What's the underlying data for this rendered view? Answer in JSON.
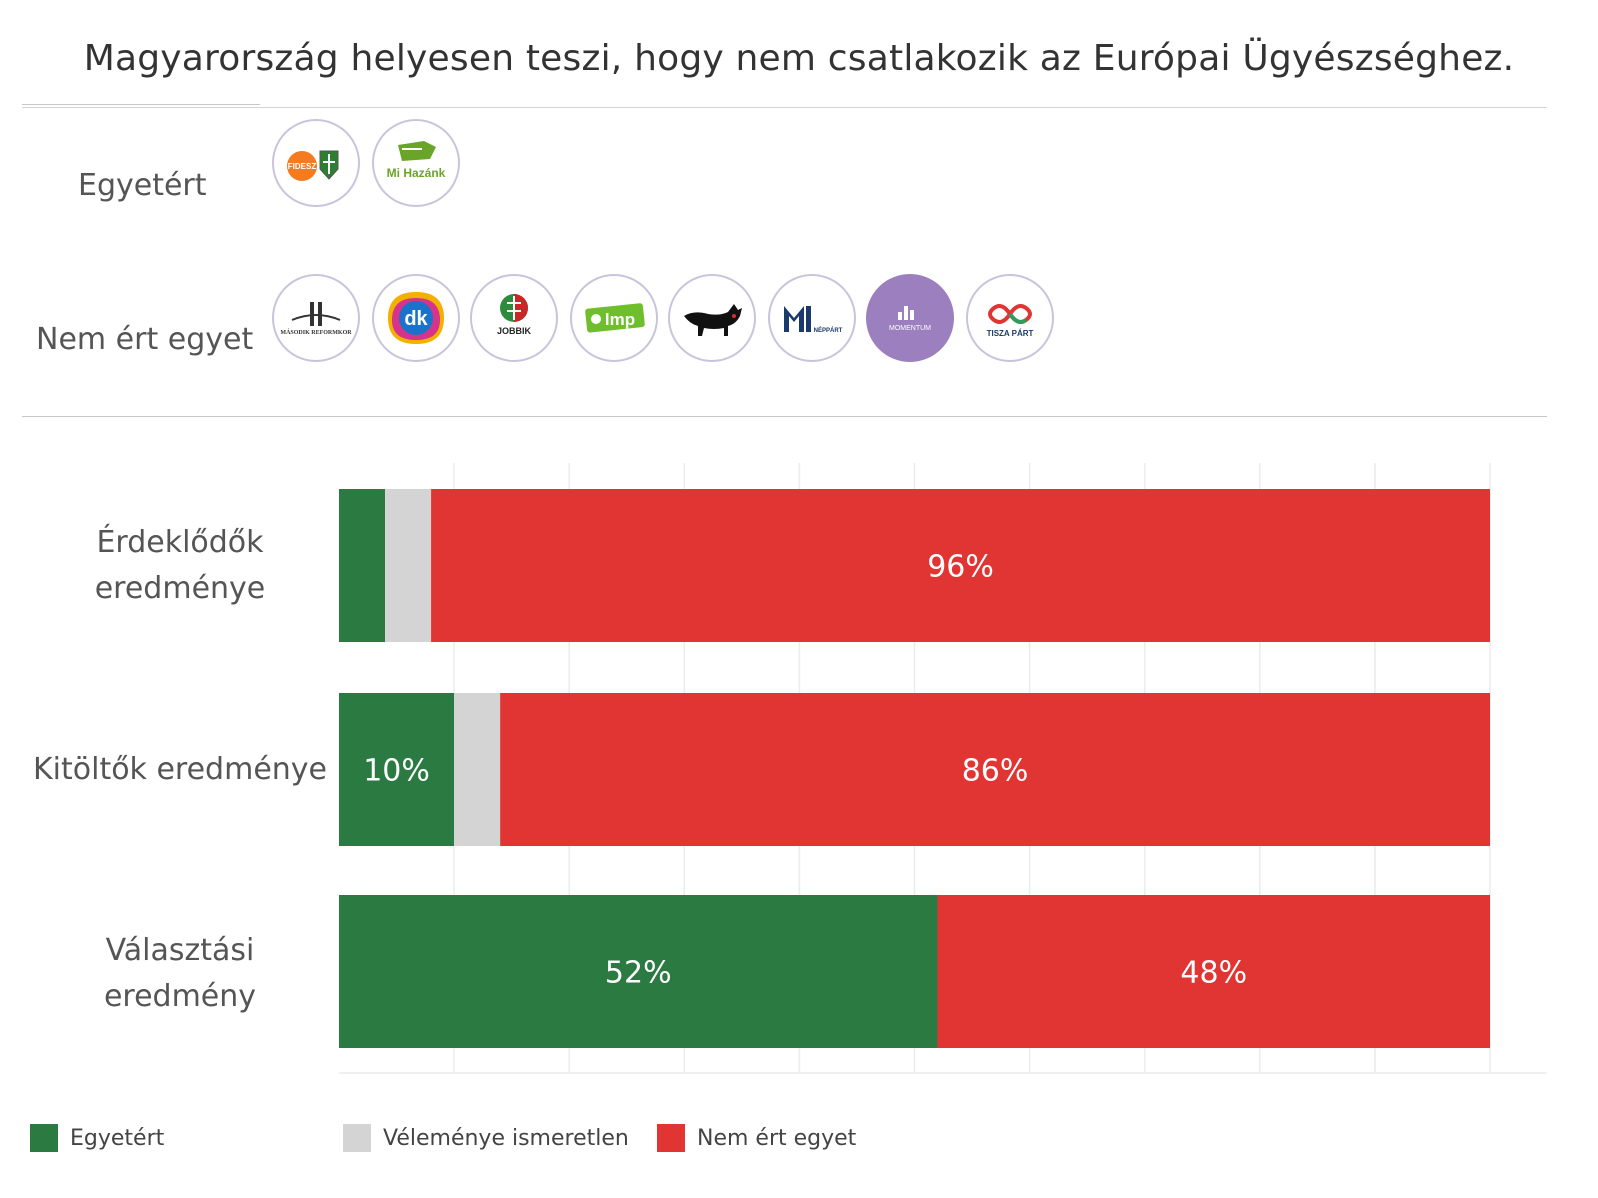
{
  "title": "Magyarország helyesen teszi, hogy nem csatlakozik az Európai Ügyészséghez.",
  "groups": {
    "agree_label": "Egyetért",
    "disagree_label": "Nem ért egyet",
    "agree_logos": [
      {
        "name": "fidesz-kdnp-logo",
        "text": "FIDESZ"
      },
      {
        "name": "mi-hazank-logo",
        "text": "Mi Hazánk"
      }
    ],
    "disagree_logos": [
      {
        "name": "masodik-reformkor-logo",
        "text": "MÁSODIK REFORMKOR"
      },
      {
        "name": "dk-logo",
        "text": "dk"
      },
      {
        "name": "jobbik-logo",
        "text": "JOBBIK"
      },
      {
        "name": "lmp-logo",
        "text": "lmp"
      },
      {
        "name": "mkkp-logo",
        "text": ""
      },
      {
        "name": "mmn-logo",
        "text": "NÉPPÁRT"
      },
      {
        "name": "momentum-logo",
        "text": "MOMENTUM"
      },
      {
        "name": "tisza-logo",
        "text": "TISZA PÁRT"
      }
    ]
  },
  "colors": {
    "agree": "#2a7a42",
    "unknown": "#d4d4d4",
    "disagree": "#e03533",
    "grid": "#ececec",
    "label_text": "#ffffff"
  },
  "chart_data": {
    "type": "bar",
    "orientation": "horizontal-stacked",
    "categories": [
      "Érdeklődők eredménye",
      "Kitöltők eredménye",
      "Választási eredmény"
    ],
    "category_lines": [
      [
        "Érdeklődők",
        "eredménye"
      ],
      [
        "Kitöltők eredménye"
      ],
      [
        "Választási",
        "eredmény"
      ]
    ],
    "series": [
      {
        "name": "Egyetért",
        "values": [
          4,
          10,
          52
        ],
        "labels": [
          "",
          "10%",
          "52%"
        ]
      },
      {
        "name": "Véleménye ismeretlen",
        "values": [
          4,
          4,
          0
        ],
        "labels": [
          "",
          "",
          ""
        ]
      },
      {
        "name": "Nem ért egyet",
        "values": [
          96,
          86,
          48
        ],
        "labels": [
          "96%",
          "86%",
          "48%"
        ]
      }
    ],
    "xlim": [
      0,
      100
    ],
    "grid": true,
    "legend": "bottom-left"
  },
  "legend": [
    {
      "label": "Egyetért",
      "color": "#2a7a42"
    },
    {
      "label": "Véleménye ismeretlen",
      "color": "#d4d4d4"
    },
    {
      "label": "Nem ért egyet",
      "color": "#e03533"
    }
  ]
}
